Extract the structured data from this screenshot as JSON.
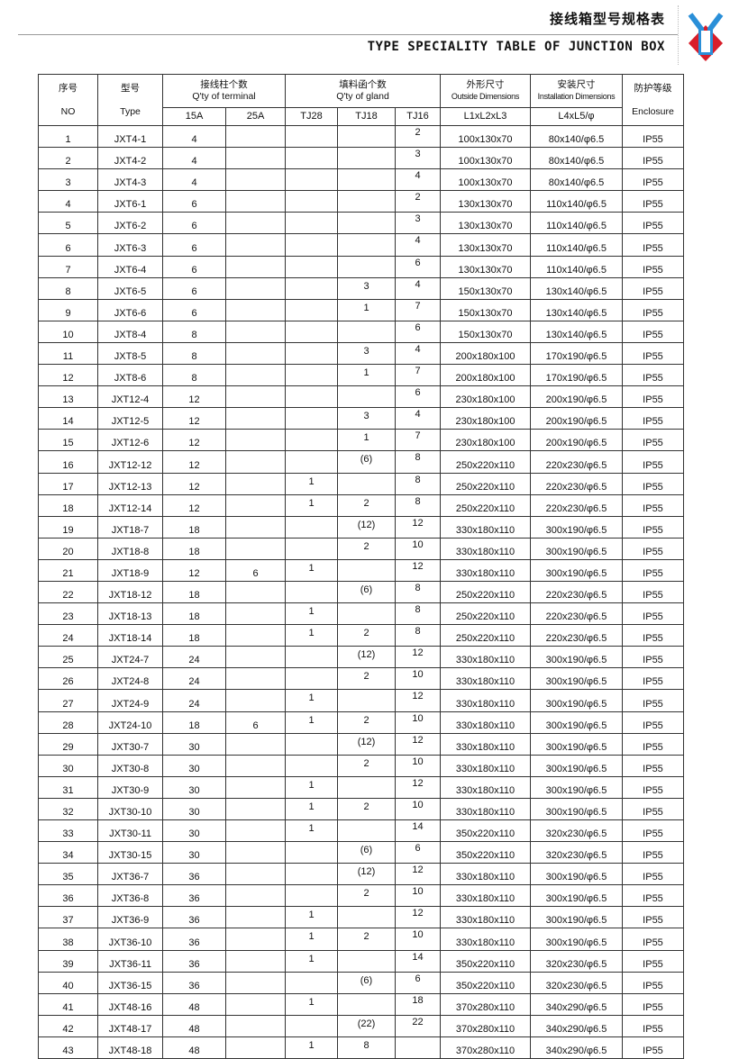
{
  "header": {
    "title_cn": "接线箱型号规格表",
    "title_en": "TYPE SPECIALITY TABLE OF JUNCTION BOX"
  },
  "colors": {
    "logo_red": "#d81e2a",
    "logo_blue": "#2a8fd8"
  },
  "table": {
    "h_no_cn": "序号",
    "h_no_en": "NO",
    "h_type_cn": "型号",
    "h_type_en": "Type",
    "h_term_cn": "接线柱个数",
    "h_term_en": "Q'ty of terminal",
    "h_gland_cn": "填料函个数",
    "h_gland_en": "Q'ty of gland",
    "h_out_cn": "外形尺寸",
    "h_out_en": "Outside Dimensions",
    "h_inst_cn": "安装尺寸",
    "h_inst_en": "Installation Dimensions",
    "h_enc_cn": "防护等级",
    "h_enc_en": "Enclosure",
    "sub": [
      "15A",
      "25A",
      "TJ28",
      "TJ18",
      "TJ16",
      "L1xL2xL3",
      "L4xL5/φ"
    ]
  },
  "rows": [
    [
      "1",
      "JXT4-1",
      "4",
      "",
      "",
      "",
      "2",
      "100x130x70",
      "80x140/φ6.5",
      "IP55"
    ],
    [
      "2",
      "JXT4-2",
      "4",
      "",
      "",
      "",
      "3",
      "100x130x70",
      "80x140/φ6.5",
      "IP55"
    ],
    [
      "3",
      "JXT4-3",
      "4",
      "",
      "",
      "",
      "4",
      "100x130x70",
      "80x140/φ6.5",
      "IP55"
    ],
    [
      "4",
      "JXT6-1",
      "6",
      "",
      "",
      "",
      "2",
      "130x130x70",
      "110x140/φ6.5",
      "IP55"
    ],
    [
      "5",
      "JXT6-2",
      "6",
      "",
      "",
      "",
      "3",
      "130x130x70",
      "110x140/φ6.5",
      "IP55"
    ],
    [
      "6",
      "JXT6-3",
      "6",
      "",
      "",
      "",
      "4",
      "130x130x70",
      "110x140/φ6.5",
      "IP55"
    ],
    [
      "7",
      "JXT6-4",
      "6",
      "",
      "",
      "",
      "6",
      "130x130x70",
      "110x140/φ6.5",
      "IP55"
    ],
    [
      "8",
      "JXT6-5",
      "6",
      "",
      "",
      "3",
      "4",
      "150x130x70",
      "130x140/φ6.5",
      "IP55"
    ],
    [
      "9",
      "JXT6-6",
      "6",
      "",
      "",
      "1",
      "7",
      "150x130x70",
      "130x140/φ6.5",
      "IP55"
    ],
    [
      "10",
      "JXT8-4",
      "8",
      "",
      "",
      "",
      "6",
      "150x130x70",
      "130x140/φ6.5",
      "IP55"
    ],
    [
      "11",
      "JXT8-5",
      "8",
      "",
      "",
      "3",
      "4",
      "200x180x100",
      "170x190/φ6.5",
      "IP55"
    ],
    [
      "12",
      "JXT8-6",
      "8",
      "",
      "",
      "1",
      "7",
      "200x180x100",
      "170x190/φ6.5",
      "IP55"
    ],
    [
      "13",
      "JXT12-4",
      "12",
      "",
      "",
      "",
      "6",
      "230x180x100",
      "200x190/φ6.5",
      "IP55"
    ],
    [
      "14",
      "JXT12-5",
      "12",
      "",
      "",
      "3",
      "4",
      "230x180x100",
      "200x190/φ6.5",
      "IP55"
    ],
    [
      "15",
      "JXT12-6",
      "12",
      "",
      "",
      "1",
      "7",
      "230x180x100",
      "200x190/φ6.5",
      "IP55"
    ],
    [
      "16",
      "JXT12-12",
      "12",
      "",
      "",
      "(6)",
      "8",
      "250x220x110",
      "220x230/φ6.5",
      "IP55"
    ],
    [
      "17",
      "JXT12-13",
      "12",
      "",
      "1",
      "",
      "8",
      "250x220x110",
      "220x230/φ6.5",
      "IP55"
    ],
    [
      "18",
      "JXT12-14",
      "12",
      "",
      "1",
      "2",
      "8",
      "250x220x110",
      "220x230/φ6.5",
      "IP55"
    ],
    [
      "19",
      "JXT18-7",
      "18",
      "",
      "",
      "(12)",
      "12",
      "330x180x110",
      "300x190/φ6.5",
      "IP55"
    ],
    [
      "20",
      "JXT18-8",
      "18",
      "",
      "",
      "2",
      "10",
      "330x180x110",
      "300x190/φ6.5",
      "IP55"
    ],
    [
      "21",
      "JXT18-9",
      "12",
      "6",
      "1",
      "",
      "12",
      "330x180x110",
      "300x190/φ6.5",
      "IP55"
    ],
    [
      "22",
      "JXT18-12",
      "18",
      "",
      "",
      "(6)",
      "8",
      "250x220x110",
      "220x230/φ6.5",
      "IP55"
    ],
    [
      "23",
      "JXT18-13",
      "18",
      "",
      "1",
      "",
      "8",
      "250x220x110",
      "220x230/φ6.5",
      "IP55"
    ],
    [
      "24",
      "JXT18-14",
      "18",
      "",
      "1",
      "2",
      "8",
      "250x220x110",
      "220x230/φ6.5",
      "IP55"
    ],
    [
      "25",
      "JXT24-7",
      "24",
      "",
      "",
      "(12)",
      "12",
      "330x180x110",
      "300x190/φ6.5",
      "IP55"
    ],
    [
      "26",
      "JXT24-8",
      "24",
      "",
      "",
      "2",
      "10",
      "330x180x110",
      "300x190/φ6.5",
      "IP55"
    ],
    [
      "27",
      "JXT24-9",
      "24",
      "",
      "1",
      "",
      "12",
      "330x180x110",
      "300x190/φ6.5",
      "IP55"
    ],
    [
      "28",
      "JXT24-10",
      "18",
      "6",
      "1",
      "2",
      "10",
      "330x180x110",
      "300x190/φ6.5",
      "IP55"
    ],
    [
      "29",
      "JXT30-7",
      "30",
      "",
      "",
      "(12)",
      "12",
      "330x180x110",
      "300x190/φ6.5",
      "IP55"
    ],
    [
      "30",
      "JXT30-8",
      "30",
      "",
      "",
      "2",
      "10",
      "330x180x110",
      "300x190/φ6.5",
      "IP55"
    ],
    [
      "31",
      "JXT30-9",
      "30",
      "",
      "1",
      "",
      "12",
      "330x180x110",
      "300x190/φ6.5",
      "IP55"
    ],
    [
      "32",
      "JXT30-10",
      "30",
      "",
      "1",
      "2",
      "10",
      "330x180x110",
      "300x190/φ6.5",
      "IP55"
    ],
    [
      "33",
      "JXT30-11",
      "30",
      "",
      "1",
      "",
      "14",
      "350x220x110",
      "320x230/φ6.5",
      "IP55"
    ],
    [
      "34",
      "JXT30-15",
      "30",
      "",
      "",
      "(6)",
      "6",
      "350x220x110",
      "320x230/φ6.5",
      "IP55"
    ],
    [
      "35",
      "JXT36-7",
      "36",
      "",
      "",
      "(12)",
      "12",
      "330x180x110",
      "300x190/φ6.5",
      "IP55"
    ],
    [
      "36",
      "JXT36-8",
      "36",
      "",
      "",
      "2",
      "10",
      "330x180x110",
      "300x190/φ6.5",
      "IP55"
    ],
    [
      "37",
      "JXT36-9",
      "36",
      "",
      "1",
      "",
      "12",
      "330x180x110",
      "300x190/φ6.5",
      "IP55"
    ],
    [
      "38",
      "JXT36-10",
      "36",
      "",
      "1",
      "2",
      "10",
      "330x180x110",
      "300x190/φ6.5",
      "IP55"
    ],
    [
      "39",
      "JXT36-11",
      "36",
      "",
      "1",
      "",
      "14",
      "350x220x110",
      "320x230/φ6.5",
      "IP55"
    ],
    [
      "40",
      "JXT36-15",
      "36",
      "",
      "",
      "(6)",
      "6",
      "350x220x110",
      "320x230/φ6.5",
      "IP55"
    ],
    [
      "41",
      "JXT48-16",
      "48",
      "",
      "1",
      "",
      "18",
      "370x280x110",
      "340x290/φ6.5",
      "IP55"
    ],
    [
      "42",
      "JXT48-17",
      "48",
      "",
      "",
      "(22)",
      "22",
      "370x280x110",
      "340x290/φ6.5",
      "IP55"
    ],
    [
      "43",
      "JXT48-18",
      "48",
      "",
      "1",
      "8",
      "",
      "370x280x110",
      "340x290/φ6.5",
      "IP55"
    ]
  ]
}
